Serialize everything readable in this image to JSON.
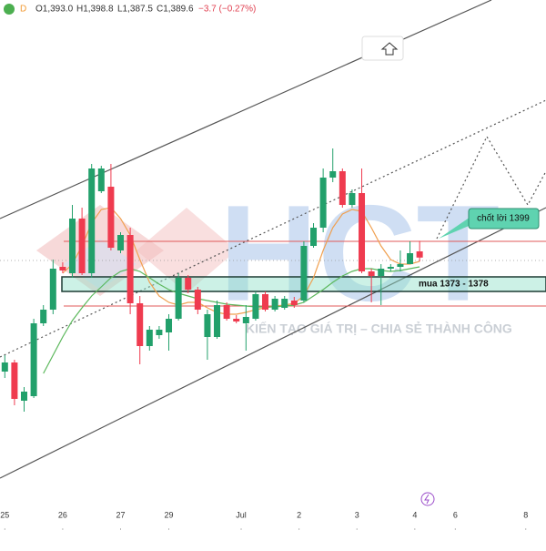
{
  "header": {
    "symbol_badge": "D",
    "open": "O1,393.0",
    "high": "H1,398.8",
    "low": "L1,387.5",
    "close": "C1,389.6",
    "change": "−3.7 (−0.27%)"
  },
  "watermark": {
    "logo": "HCT",
    "slogan": "KIẾN TẠO GIÁ TRỊ – CHIA SẺ THÀNH CÔNG"
  },
  "annotations": {
    "buy_zone": "mua 1373 - 1378",
    "take_profit": "chốt lời 1399"
  },
  "chart_data": {
    "type": "candlestick",
    "up_color": "#22a06b",
    "down_color": "#ef3b4f",
    "xlim": [
      -0.5,
      56.1
    ],
    "ylim": [
      1240,
      1531
    ],
    "xticks": [
      {
        "value": 0,
        "label": "25"
      },
      {
        "value": 6,
        "label": "26"
      },
      {
        "value": 12,
        "label": "27"
      },
      {
        "value": 17,
        "label": "29"
      },
      {
        "value": 24.5,
        "label": "Jul"
      },
      {
        "value": 30.5,
        "label": "2"
      },
      {
        "value": 36.5,
        "label": "3"
      },
      {
        "value": 42.5,
        "label": "4"
      },
      {
        "value": 46.7,
        "label": "6"
      },
      {
        "value": 54,
        "label": "8"
      }
    ],
    "x": [
      0,
      1,
      2,
      3,
      4,
      5,
      6,
      7,
      8,
      9,
      10,
      11,
      12,
      13,
      14,
      15,
      16,
      17,
      18,
      19,
      20,
      21,
      22,
      23,
      24,
      25,
      26,
      27,
      28,
      29,
      30,
      31,
      32,
      33,
      34,
      35,
      36,
      37,
      38,
      39,
      40,
      41,
      42,
      43
    ],
    "open": [
      1327,
      1332,
      1311,
      1313.5,
      1353.5,
      1361,
      1384.5,
      1381,
      1411,
      1381,
      1426,
      1428.5,
      1393.5,
      1402,
      1364.5,
      1341,
      1347,
      1348.5,
      1356,
      1378.5,
      1372,
      1346,
      1346,
      1363.5,
      1356,
      1353.5,
      1356,
      1369.5,
      1361,
      1362,
      1366,
      1366,
      1396,
      1406,
      1433.5,
      1437,
      1418.5,
      1425,
      1382,
      1379.5,
      1383.5,
      1384.5,
      1386,
      1393
    ],
    "high": [
      1336,
      1333.5,
      1318.5,
      1356,
      1363.5,
      1388.5,
      1387,
      1418.5,
      1417,
      1441,
      1440,
      1441,
      1403.5,
      1406,
      1368.5,
      1352,
      1352,
      1358.5,
      1381,
      1380,
      1373.5,
      1361,
      1366,
      1365,
      1358,
      1363.5,
      1371,
      1371,
      1368.5,
      1368.5,
      1368,
      1398.5,
      1408.5,
      1438.5,
      1449.5,
      1438.5,
      1427,
      1438.5,
      1383.5,
      1386,
      1386,
      1393.5,
      1398.5,
      1398.8
    ],
    "low": [
      1323.5,
      1308.5,
      1305,
      1312.5,
      1352,
      1358.5,
      1381,
      1378.5,
      1380,
      1378.5,
      1425,
      1393.5,
      1392,
      1358.5,
      1331,
      1338.5,
      1345,
      1338.5,
      1355,
      1370,
      1358.5,
      1333.5,
      1345,
      1355,
      1353.5,
      1338.5,
      1355,
      1360,
      1360,
      1361,
      1362,
      1365,
      1395,
      1403.5,
      1431,
      1417,
      1417,
      1381,
      1365,
      1363.5,
      1382,
      1382,
      1386,
      1387.5
    ],
    "close": [
      1332,
      1312,
      1316,
      1353.5,
      1361,
      1383.5,
      1382.5,
      1411,
      1381,
      1438.5,
      1438.5,
      1395,
      1402,
      1364.5,
      1341,
      1350,
      1350,
      1356,
      1378.5,
      1372,
      1361,
      1358.5,
      1363.5,
      1356,
      1354.5,
      1357,
      1369.5,
      1361,
      1367,
      1367,
      1363.5,
      1396,
      1406,
      1433.5,
      1437,
      1418.5,
      1425,
      1382,
      1379.5,
      1383.5,
      1384.5,
      1386,
      1392,
      1389.6
    ],
    "overlays": [
      {
        "color": "#f0a050",
        "values": [
          null,
          null,
          null,
          null,
          null,
          null,
          1381,
          1386,
          1396,
          1408.5,
          1416,
          1417,
          1411,
          1402,
          1388.5,
          1376,
          1368.5,
          1365,
          1363.5,
          1365,
          1365,
          1362,
          1359.5,
          1358.5,
          1358.5,
          1359.5,
          1361,
          1362,
          1363,
          1363.5,
          1364.5,
          1368.5,
          1378.5,
          1393.5,
          1406,
          1413.5,
          1416,
          1415,
          1406,
          1396,
          1388.5,
          1386,
          1386,
          1387.5
        ]
      },
      {
        "color": "#5cb85c",
        "values": [
          null,
          null,
          null,
          null,
          1326,
          1336,
          1346,
          1355,
          1362,
          1368.5,
          1373.5,
          1378.5,
          1382,
          1383.5,
          1382,
          1378.5,
          1375,
          1372,
          1370,
          1368.5,
          1367,
          1366,
          1365,
          1364,
          1363.5,
          1363,
          1362.5,
          1362.5,
          1362.5,
          1363,
          1363.5,
          1365,
          1368.5,
          1372,
          1376,
          1379.5,
          1382,
          1383.5,
          1383.5,
          1382.5,
          1382,
          1382.5,
          1383.5,
          1384.5
        ]
      }
    ]
  }
}
